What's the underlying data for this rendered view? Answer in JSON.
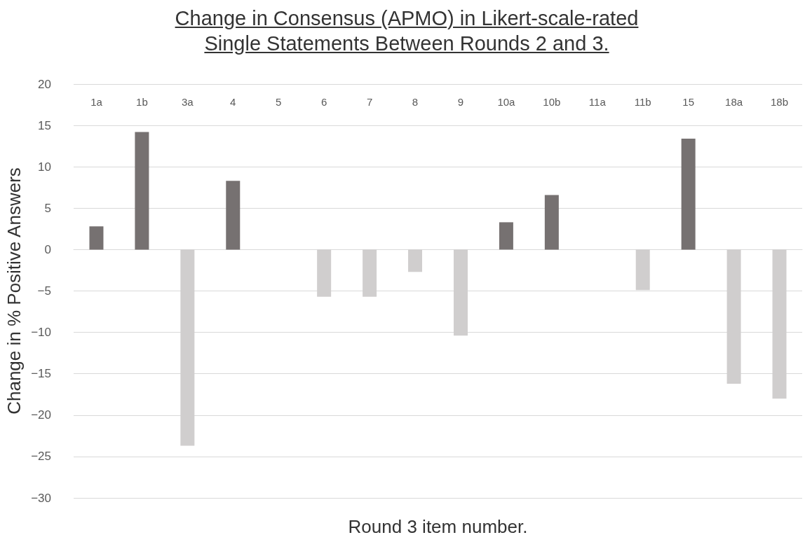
{
  "chart_data": {
    "type": "bar",
    "title": "Change in Consensus (APMO) in Likert-scale-rated\nSingle Statements Between Rounds 2 and 3.",
    "xlabel": "Round 3 item number.",
    "ylabel": "Change in % Positive Answers",
    "categories": [
      "1a",
      "1b",
      "3a",
      "4",
      "5",
      "6",
      "7",
      "8",
      "9",
      "10a",
      "10b",
      "11a",
      "11b",
      "15",
      "18a",
      "18b"
    ],
    "values": [
      2.8,
      14.2,
      -23.7,
      8.3,
      0,
      -5.7,
      -5.7,
      -2.7,
      -10.4,
      3.3,
      6.6,
      0,
      -4.9,
      13.4,
      -16.2,
      -18.0
    ],
    "colors": [
      "#767171",
      "#767171",
      "#d0cece",
      "#767171",
      "#767171",
      "#d0cece",
      "#d0cece",
      "#d0cece",
      "#d0cece",
      "#767171",
      "#767171",
      "#767171",
      "#d0cece",
      "#767171",
      "#d0cece",
      "#d0cece"
    ],
    "ylim": [
      -30,
      20
    ],
    "yticks": [
      -30,
      -25,
      -20,
      -15,
      -10,
      -5,
      0,
      5,
      10,
      15,
      20
    ],
    "grid": "y"
  }
}
